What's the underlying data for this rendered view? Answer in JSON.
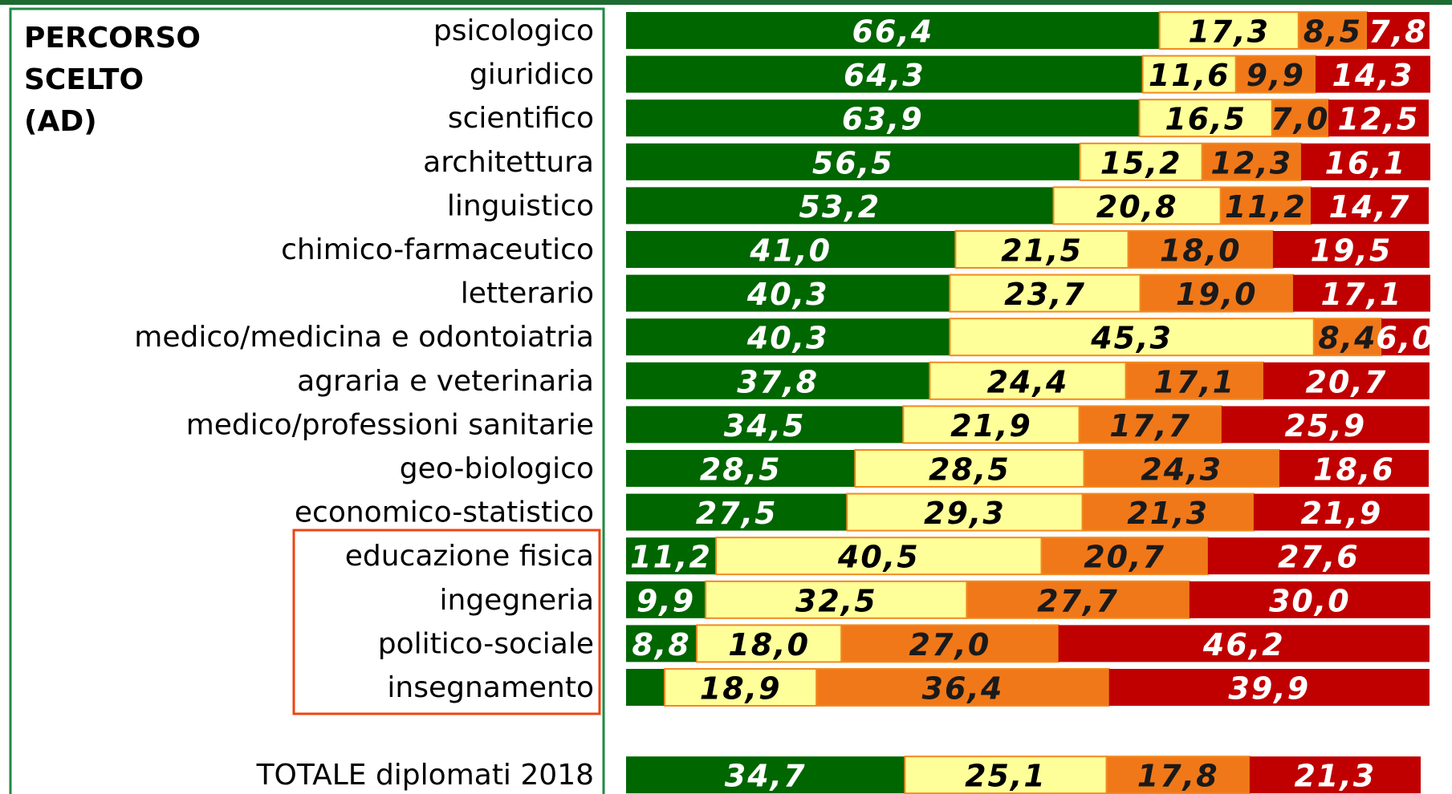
{
  "chart_data": {
    "type": "stacked_bar_horizontal",
    "title": "PERCORSO SCELTO (AD)",
    "categories": [
      "psicologico",
      "giuridico",
      "scientifico",
      "architettura",
      "linguistico",
      "chimico-farmaceutico",
      "letterario",
      "medico/medicina e odontoiatria",
      "agraria e veterinaria",
      "medico/professioni sanitarie",
      "geo-biologico",
      "economico-statistico",
      "educazione fisica",
      "ingegneria",
      "politico-sociale",
      "insegnamento",
      null,
      "TOTALE diplomati 2018"
    ],
    "xlim": [
      0,
      100
    ],
    "series": [
      {
        "color": "#006600",
        "values": [
          66.4,
          64.3,
          63.9,
          56.5,
          53.2,
          41.0,
          40.3,
          40.3,
          37.8,
          34.5,
          28.5,
          27.5,
          11.2,
          9.9,
          8.8,
          4.8,
          null,
          34.7
        ],
        "value_labels": [
          "66,4",
          "64,3",
          "63,9",
          "56,5",
          "53,2",
          "41,0",
          "40,3",
          "40,3",
          "37,8",
          "34,5",
          "28,5",
          "27,5",
          "11,2",
          "9,9",
          "8,8",
          null,
          null,
          "34,7"
        ]
      },
      {
        "color": "#ffff99",
        "values": [
          17.3,
          11.6,
          16.5,
          15.2,
          20.8,
          21.5,
          23.7,
          45.3,
          24.4,
          21.9,
          28.5,
          29.3,
          40.5,
          32.5,
          18.0,
          18.9,
          null,
          25.1
        ],
        "value_labels": [
          "17,3",
          "11,6",
          "16,5",
          "15,2",
          "20,8",
          "21,5",
          "23,7",
          "45,3",
          "24,4",
          "21,9",
          "28,5",
          "29,3",
          "40,5",
          "32,5",
          "18,0",
          "18,9",
          null,
          "25,1"
        ]
      },
      {
        "color": "#f07818",
        "values": [
          8.5,
          9.9,
          7.0,
          12.3,
          11.2,
          18.0,
          19.0,
          8.4,
          17.1,
          17.7,
          24.3,
          21.3,
          20.7,
          27.7,
          27.0,
          36.4,
          null,
          17.8
        ],
        "value_labels": [
          "8,5",
          "9,9",
          "7,0",
          "12,3",
          "11,2",
          "18,0",
          "19,0",
          "8,4",
          "17,1",
          "17,7",
          "24,3",
          "21,3",
          "20,7",
          "27,7",
          "27,0",
          "36,4",
          null,
          "17,8"
        ]
      },
      {
        "color": "#c00000",
        "values": [
          7.8,
          14.3,
          12.5,
          16.1,
          14.7,
          19.5,
          17.1,
          6.0,
          20.7,
          25.9,
          18.6,
          21.9,
          27.6,
          30.0,
          46.2,
          39.9,
          null,
          21.3
        ],
        "value_labels": [
          "7,8",
          "14,3",
          "12,5",
          "16,1",
          "14,7",
          "19,5",
          "17,1",
          "6,0",
          "20,7",
          "25,9",
          "18,6",
          "21,9",
          "27,6",
          "30,0",
          "46,2",
          "39,9",
          null,
          "21,3"
        ]
      }
    ]
  }
}
